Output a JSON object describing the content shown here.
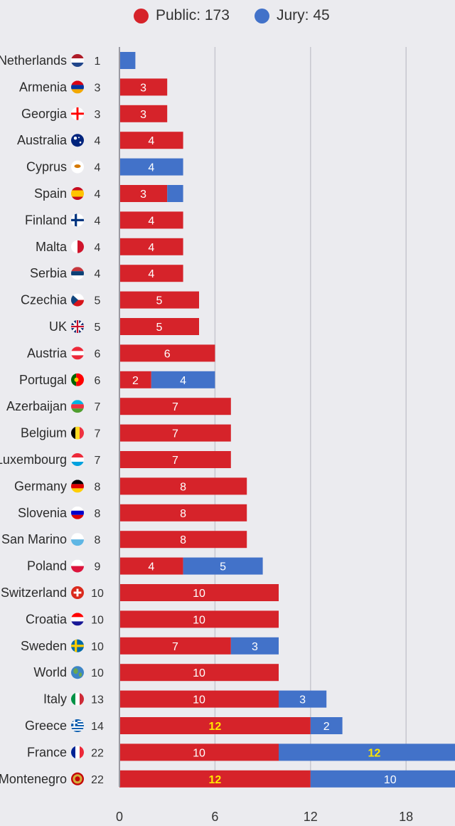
{
  "legend": {
    "public_label": "Public: 173",
    "jury_label": "Jury: 45"
  },
  "colors": {
    "public": "#d6232a",
    "jury": "#4272c9",
    "grid": "#c7c7cf",
    "axis": "#9a9aa2",
    "highlight_text": "#ffe600"
  },
  "chart_data": {
    "type": "bar",
    "orientation": "horizontal",
    "stacked": true,
    "categories": [
      "Netherlands",
      "Armenia",
      "Georgia",
      "Australia",
      "Cyprus",
      "Spain",
      "Finland",
      "Malta",
      "Serbia",
      "Czechia",
      "UK",
      "Austria",
      "Portugal",
      "Azerbaijan",
      "Belgium",
      "Luxembourg",
      "Germany",
      "Slovenia",
      "San Marino",
      "Poland",
      "Switzerland",
      "Croatia",
      "Sweden",
      "World",
      "Italy",
      "Greece",
      "France",
      "Montenegro"
    ],
    "flag_icons": [
      "netherlands-flag",
      "armenia-flag",
      "georgia-flag",
      "australia-flag",
      "cyprus-flag",
      "spain-flag",
      "finland-flag",
      "malta-flag",
      "serbia-flag",
      "czechia-flag",
      "uk-flag",
      "austria-flag",
      "portugal-flag",
      "azerbaijan-flag",
      "belgium-flag",
      "luxembourg-flag",
      "germany-flag",
      "slovenia-flag",
      "san-marino-flag",
      "poland-flag",
      "switzerland-flag",
      "croatia-flag",
      "sweden-flag",
      "world-globe",
      "italy-flag",
      "greece-flag",
      "france-flag",
      "montenegro-flag"
    ],
    "totals": [
      1,
      3,
      3,
      4,
      4,
      4,
      4,
      4,
      4,
      5,
      5,
      6,
      6,
      7,
      7,
      7,
      8,
      8,
      8,
      9,
      10,
      10,
      10,
      10,
      13,
      14,
      22,
      22
    ],
    "series": [
      {
        "name": "Public",
        "values": [
          0,
          3,
          3,
          4,
          0,
          3,
          4,
          4,
          4,
          5,
          5,
          6,
          2,
          7,
          7,
          7,
          8,
          8,
          8,
          4,
          10,
          10,
          7,
          10,
          10,
          12,
          10,
          12
        ]
      },
      {
        "name": "Jury",
        "values": [
          1,
          0,
          0,
          0,
          4,
          1,
          0,
          0,
          0,
          0,
          0,
          0,
          4,
          0,
          0,
          0,
          0,
          0,
          0,
          5,
          0,
          0,
          3,
          0,
          3,
          2,
          12,
          10
        ]
      }
    ],
    "segment_labels": {
      "Public": [
        "",
        "3",
        "3",
        "4",
        "",
        "3",
        "4",
        "4",
        "4",
        "5",
        "5",
        "6",
        "2",
        "7",
        "7",
        "7",
        "8",
        "8",
        "8",
        "4",
        "10",
        "10",
        "7",
        "10",
        "10",
        "12",
        "10",
        "12"
      ],
      "Jury": [
        "",
        "",
        "",
        "",
        "4",
        "",
        "",
        "",
        "",
        "",
        "",
        "",
        "4",
        "",
        "",
        "",
        "",
        "",
        "",
        "5",
        "",
        "",
        "3",
        "",
        "3",
        "2",
        "12",
        "10"
      ]
    },
    "highlight_value": 12,
    "xticks": [
      0,
      6,
      12,
      18
    ],
    "xlim": [
      0,
      21
    ],
    "grid": true,
    "legend_position": "top"
  }
}
